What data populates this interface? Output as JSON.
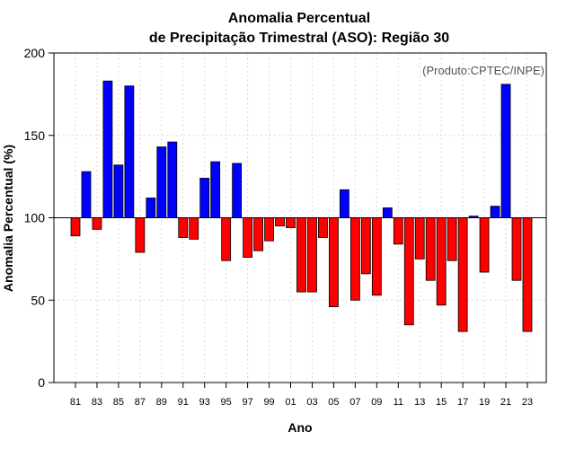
{
  "chart_data": {
    "type": "bar",
    "title_line1": "Anomalia Percentual",
    "title_line2": "de Precipitação Trimestral (ASO): Região 30",
    "credit": "(Produto:CPTEC/INPE)",
    "xlabel": "Ano",
    "ylabel": "Anomalia Percentual (%)",
    "ylim": [
      0,
      200
    ],
    "yticks": [
      0,
      50,
      100,
      150,
      200
    ],
    "baseline": 100,
    "grid": true,
    "colors": {
      "above": "#0000ff",
      "below": "#ff0000",
      "outline": "#000000",
      "grid": "#d9d9d9"
    },
    "categories": [
      "81",
      "82",
      "83",
      "84",
      "85",
      "86",
      "87",
      "88",
      "89",
      "90",
      "91",
      "92",
      "93",
      "94",
      "95",
      "96",
      "97",
      "98",
      "99",
      "00",
      "01",
      "02",
      "03",
      "04",
      "05",
      "06",
      "07",
      "08",
      "09",
      "10",
      "11",
      "12",
      "13",
      "14",
      "15",
      "16",
      "17",
      "18",
      "19",
      "20",
      "21",
      "22",
      "23"
    ],
    "xtick_labels": [
      "81",
      "83",
      "85",
      "87",
      "89",
      "91",
      "93",
      "95",
      "97",
      "99",
      "01",
      "03",
      "05",
      "07",
      "09",
      "11",
      "13",
      "15",
      "17",
      "19",
      "21",
      "23"
    ],
    "values": [
      89,
      128,
      93,
      183,
      132,
      180,
      79,
      112,
      143,
      146,
      88,
      87,
      124,
      134,
      74,
      133,
      76,
      80,
      86,
      95,
      94,
      55,
      55,
      88,
      46,
      117,
      50,
      66,
      53,
      106,
      84,
      35,
      75,
      62,
      47,
      74,
      31,
      101,
      67,
      107,
      181,
      62,
      31
    ]
  }
}
